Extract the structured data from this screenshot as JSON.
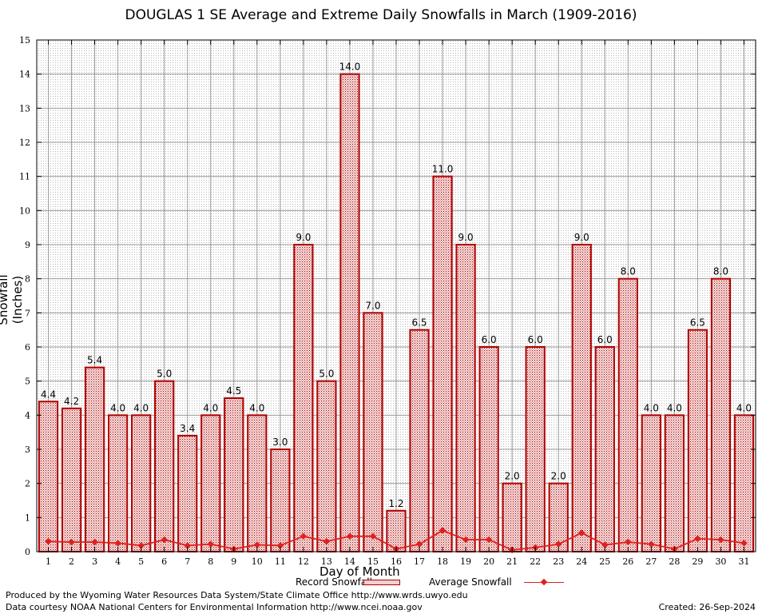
{
  "chart_data": {
    "type": "bar",
    "title": "DOUGLAS 1 SE Average and Extreme Daily Snowfalls in March (1909-2016)",
    "xlabel": "Day of Month",
    "ylabel": "Snowfall (Inches)",
    "ylim": [
      0,
      15
    ],
    "yticks": [
      "0",
      "1",
      "2",
      "3",
      "4",
      "5",
      "6",
      "7",
      "8",
      "9",
      "10",
      "11",
      "12",
      "13",
      "14",
      "15"
    ],
    "grid": true,
    "categories": [
      "1",
      "2",
      "3",
      "4",
      "5",
      "6",
      "7",
      "8",
      "9",
      "10",
      "11",
      "12",
      "13",
      "14",
      "15",
      "16",
      "17",
      "18",
      "19",
      "20",
      "21",
      "22",
      "23",
      "24",
      "25",
      "26",
      "27",
      "28",
      "29",
      "30",
      "31"
    ],
    "series": [
      {
        "name": "Record Snowfall",
        "kind": "bar",
        "color": "#b00000",
        "values": [
          4.4,
          4.2,
          5.4,
          4.0,
          4.0,
          5.0,
          3.4,
          4.0,
          4.5,
          4.0,
          3.0,
          9.0,
          5.0,
          14.0,
          7.0,
          1.2,
          6.5,
          11.0,
          9.0,
          6.0,
          2.0,
          6.0,
          2.0,
          9.0,
          6.0,
          8.0,
          4.0,
          4.0,
          6.5,
          8.0,
          4.0
        ],
        "labels": [
          "4.4",
          "4.2",
          "5.4",
          "4.0",
          "4.0",
          "5.0",
          "3.4",
          "4.0",
          "4.5",
          "4.0",
          "3.0",
          "9.0",
          "5.0",
          "14.0",
          "7.0",
          "1.2",
          "6.5",
          "11.0",
          "9.0",
          "6.0",
          "2.0",
          "6.0",
          "2.0",
          "9.0",
          "6.0",
          "8.0",
          "4.0",
          "4.0",
          "6.5",
          "8.0",
          "4.0"
        ]
      },
      {
        "name": "Average Snowfall",
        "kind": "line",
        "color": "#e02020",
        "values": [
          0.3,
          0.28,
          0.28,
          0.25,
          0.18,
          0.35,
          0.18,
          0.22,
          0.08,
          0.2,
          0.18,
          0.45,
          0.3,
          0.45,
          0.45,
          0.08,
          0.22,
          0.62,
          0.35,
          0.35,
          0.05,
          0.12,
          0.22,
          0.55,
          0.2,
          0.28,
          0.22,
          0.08,
          0.38,
          0.35,
          0.25
        ]
      }
    ],
    "legend": "bottom-center"
  },
  "footer": {
    "produced_by": "Produced by the Wyoming Water Resources Data System/State Climate Office http://www.wrds.uwyo.edu",
    "data_courtesy": "Data courtesy NOAA National Centers for Environmental Information http://www.ncei.noaa.gov",
    "created": "Created:  26-Sep-2024"
  }
}
